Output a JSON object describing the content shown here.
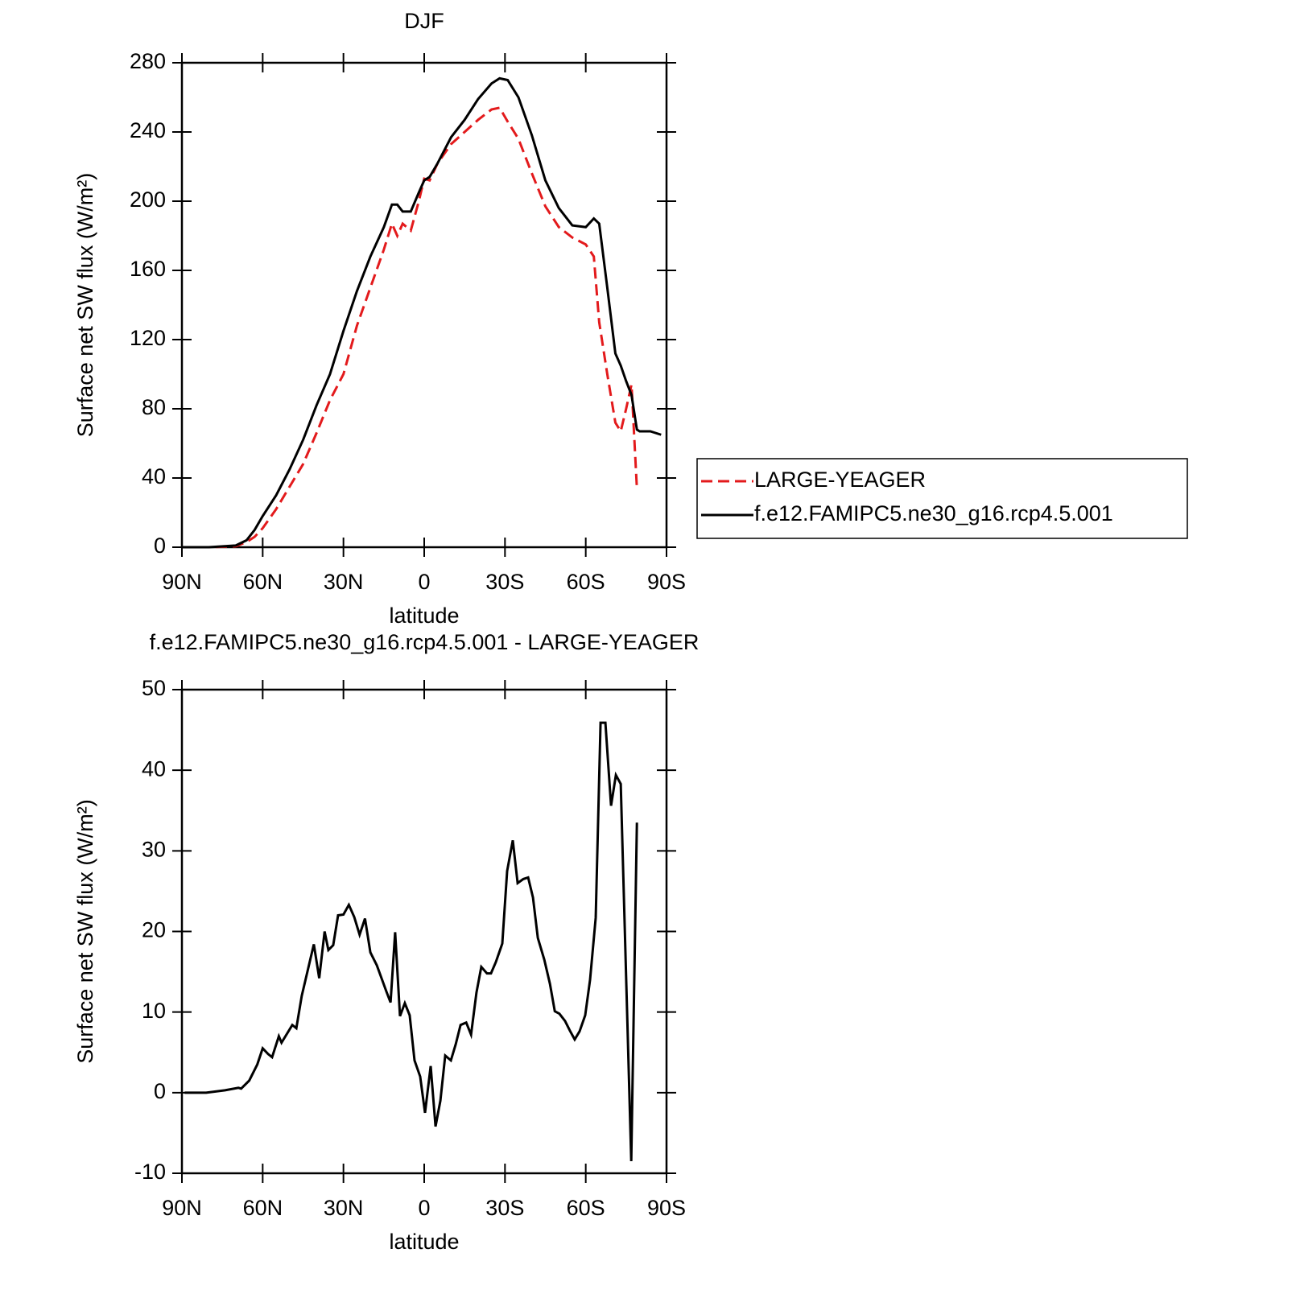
{
  "chart_data": [
    {
      "type": "line",
      "title": "DJF",
      "xlabel": "latitude",
      "ylabel": "Surface net SW flux (W/m²)",
      "x": [
        90,
        80,
        70,
        66,
        63,
        60,
        55,
        50,
        45,
        40,
        35,
        30,
        25,
        20,
        15,
        12,
        10,
        8,
        5,
        2,
        0,
        -2,
        -5,
        -10,
        -15,
        -20,
        -25,
        -28,
        -31,
        -35,
        -40,
        -45,
        -50,
        -55,
        -60,
        -63,
        -65,
        -68,
        -71,
        -73,
        -75,
        -77,
        -79,
        -80,
        -84,
        -88
      ],
      "xlim": [
        90,
        -90
      ],
      "xticks": [
        {
          "value": 90,
          "label": "90N"
        },
        {
          "value": 60,
          "label": "60N"
        },
        {
          "value": 30,
          "label": "30N"
        },
        0,
        {
          "value": -30,
          "label": "30S"
        },
        {
          "value": -60,
          "label": "60S"
        },
        {
          "value": -90,
          "label": "90S"
        }
      ],
      "ylim": [
        0,
        280
      ],
      "yticks": [
        0,
        40,
        80,
        120,
        160,
        200,
        240,
        280
      ],
      "legend": "right",
      "series": [
        {
          "name": "LARGE-YEAGER",
          "color": "#e31a1c",
          "dash": "dashed",
          "values": [
            0,
            0,
            0.5,
            3,
            6,
            11,
            22,
            35,
            48,
            66,
            85,
            100,
            128,
            150,
            172,
            187,
            180,
            187,
            183,
            200,
            213,
            212,
            222,
            233,
            240,
            247,
            253,
            254,
            246,
            236,
            216,
            197,
            185,
            179,
            175,
            168,
            130,
            100,
            72,
            67,
            80,
            94,
            34,
            null,
            null,
            null
          ]
        },
        {
          "name": "f.e12.FAMIPC5.ne30_g16.rcp4.5.001",
          "color": "#000000",
          "dash": "solid",
          "values": [
            0,
            0,
            1,
            4,
            10,
            18,
            30,
            45,
            62,
            82,
            100,
            125,
            148,
            168,
            185,
            198,
            198,
            194,
            194,
            205,
            212,
            214,
            222,
            237,
            247,
            259,
            268,
            271,
            270,
            260,
            238,
            212,
            196,
            186,
            185,
            190,
            187,
            150,
            112,
            105,
            96,
            88,
            68,
            67,
            67,
            65
          ]
        }
      ]
    },
    {
      "type": "line",
      "title": "f.e12.FAMIPC5.ne30_g16.rcp4.5.001 - LARGE-YEAGER",
      "xlabel": "latitude",
      "ylabel": "Surface net SW flux (W/m²)",
      "x": [
        89,
        81,
        74,
        69,
        68,
        65,
        62,
        60,
        58,
        56.5,
        54,
        53,
        49,
        47.5,
        45.5,
        41,
        39,
        37,
        35.6,
        33.8,
        32,
        30,
        28,
        26,
        24,
        22,
        20,
        17.6,
        14,
        12.5,
        10.8,
        9,
        7.2,
        5.4,
        3.6,
        1.5,
        -0.3,
        -2.4,
        -4.2,
        -6,
        -7.8,
        -9.9,
        -11.7,
        -13.5,
        -15.6,
        -17.4,
        -19.4,
        -21.2,
        -23.3,
        -24.8,
        -26.6,
        -29,
        -30.8,
        -32.9,
        -34.7,
        -36.8,
        -38.6,
        -40.4,
        -42.2,
        -44.6,
        -46.7,
        -48.5,
        -50.2,
        -52.3,
        -54.1,
        -55.9,
        -57.7,
        -59.8,
        -61.6,
        -63.7,
        -65.5,
        -67.3,
        -69.4,
        -71.2,
        -73,
        -76.9,
        -79
      ],
      "xlim": [
        90,
        -90
      ],
      "xticks": [
        {
          "value": 90,
          "label": "90N"
        },
        {
          "value": 60,
          "label": "60N"
        },
        {
          "value": 30,
          "label": "30N"
        },
        0,
        {
          "value": -30,
          "label": "30S"
        },
        {
          "value": -60,
          "label": "60S"
        },
        {
          "value": -90,
          "label": "90S"
        }
      ],
      "ylim": [
        -10,
        50
      ],
      "yticks": [
        -10,
        0,
        10,
        20,
        30,
        40,
        50
      ],
      "series": [
        {
          "color": "#000000",
          "dash": "solid",
          "values": [
            0,
            0,
            0.3,
            0.6,
            0.5,
            1.5,
            3.5,
            5.5,
            4.8,
            4.4,
            7,
            6.2,
            8.4,
            8,
            12,
            18.4,
            14.2,
            20,
            17.7,
            18.3,
            22,
            22.1,
            23.3,
            21.8,
            19.6,
            21.6,
            17.4,
            15.8,
            12.5,
            11.2,
            19.9,
            9.5,
            11.1,
            9.6,
            4,
            2,
            -2.5,
            3.3,
            -4.2,
            -1,
            4.6,
            4,
            6,
            8.4,
            8.7,
            7.2,
            12.4,
            15.6,
            14.8,
            14.8,
            16.2,
            18.5,
            27.5,
            31.3,
            26,
            26.5,
            26.7,
            24.2,
            19.2,
            16.5,
            13.5,
            10.1,
            9.8,
            8.9,
            7.7,
            6.6,
            7.6,
            9.6,
            14,
            21.7,
            45.9,
            45.9,
            35.6,
            39.4,
            38.3,
            -8.5,
            33.5
          ]
        }
      ]
    }
  ]
}
